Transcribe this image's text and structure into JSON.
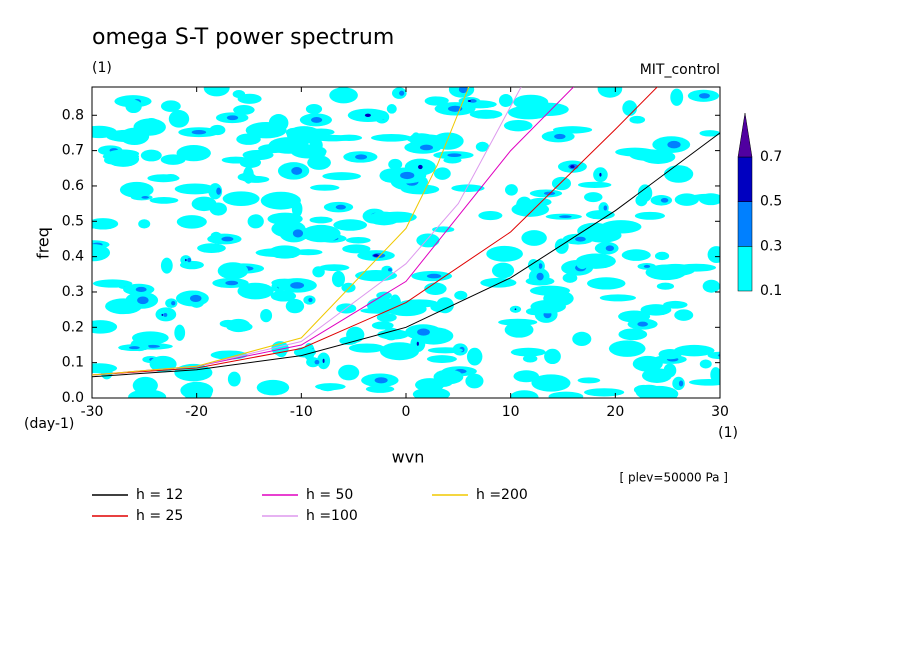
{
  "chart_data": {
    "type": "line",
    "title": "omega S-T power spectrum",
    "subtitle": "(1)",
    "run_label": "MIT_control",
    "x_label": "wvn",
    "x_unit": "(1)",
    "y_label": "freq",
    "y_unit": "(day-1)",
    "annotation": "[ plev=50000 Pa ]",
    "xlim": [
      -30,
      30
    ],
    "ylim": [
      0,
      0.88
    ],
    "xticks": [
      -30,
      -20,
      -10,
      0,
      10,
      20,
      30
    ],
    "yticks": [
      {
        "value": 0,
        "label": "0.0"
      },
      0.1,
      0.2,
      0.3,
      0.4,
      0.5,
      0.6,
      0.7,
      0.8
    ],
    "series": [
      {
        "name": "h = 12",
        "color": "#000000",
        "x": [
          -30,
          -20,
          -10,
          0,
          10,
          20,
          30
        ],
        "values": [
          0.06,
          0.08,
          0.12,
          0.2,
          0.34,
          0.53,
          0.75
        ]
      },
      {
        "name": "h = 25",
        "color": "#e00000",
        "x": [
          -30,
          -20,
          -10,
          0,
          10,
          20,
          24
        ],
        "values": [
          0.065,
          0.085,
          0.14,
          0.27,
          0.47,
          0.76,
          0.88
        ]
      },
      {
        "name": "h = 50",
        "color": "#e000c0",
        "x": [
          -30,
          -20,
          -10,
          0,
          10,
          16
        ],
        "values": [
          0.065,
          0.09,
          0.15,
          0.33,
          0.7,
          0.88
        ]
      },
      {
        "name": "h =100",
        "color": "#dd99ee",
        "x": [
          -30,
          -20,
          -10,
          0,
          5,
          11
        ],
        "values": [
          0.065,
          0.09,
          0.16,
          0.38,
          0.55,
          0.88
        ]
      },
      {
        "name": "h =200",
        "color": "#f0c800",
        "x": [
          -30,
          -20,
          -10,
          0,
          3,
          6
        ],
        "values": [
          0.065,
          0.09,
          0.17,
          0.48,
          0.66,
          0.88
        ]
      }
    ],
    "colorbar": {
      "levels": [
        0.1,
        0.3,
        0.5,
        0.7
      ],
      "colors": [
        "#00ffff",
        "#0080ff",
        "#0000c0",
        "#5000a0"
      ]
    }
  }
}
